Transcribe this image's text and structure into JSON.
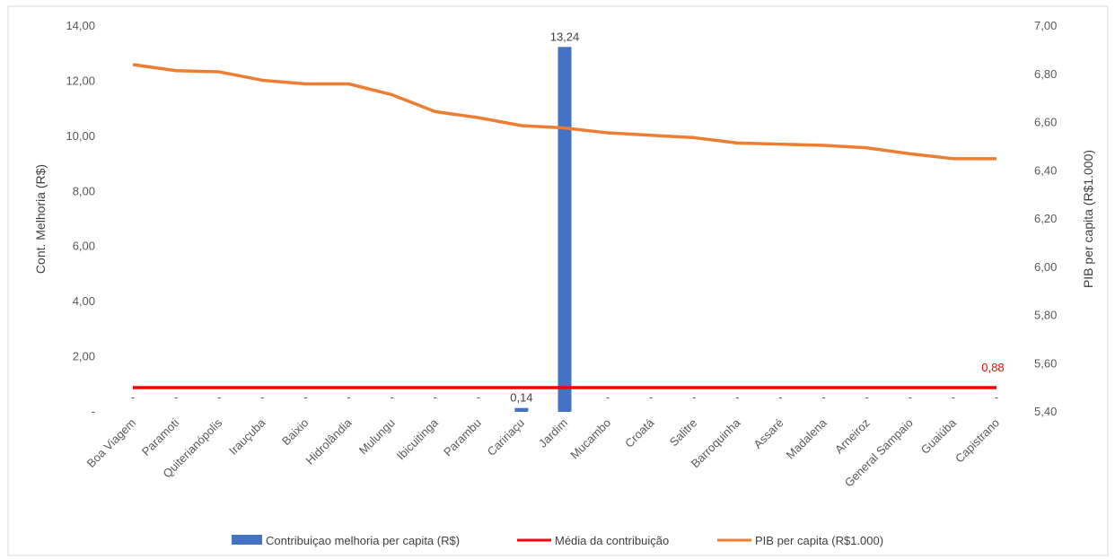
{
  "chart_data": {
    "type": "bar",
    "categories": [
      "Boa Viagem",
      "Paramoti",
      "Quiterianópolis",
      "Irauçuba",
      "Baixio",
      "Hidrolândia",
      "Mulungu",
      "Ibicuitinga",
      "Parambu",
      "Caririaçu",
      "Jardim",
      "Mucambo",
      "Croatá",
      "Salitre",
      "Barroquinha",
      "Assaré",
      "Madalena",
      "Arneiroz",
      "General Sampaio",
      "Guaiúba",
      "Capistrano"
    ],
    "series": [
      {
        "name": "Contribuiçao melhoria per capita (R$)",
        "type": "bar",
        "axis": "left",
        "color": "#4472c4",
        "values": [
          0,
          0,
          0,
          0,
          0,
          0,
          0,
          0,
          0,
          0.14,
          13.24,
          0,
          0,
          0,
          0,
          0,
          0,
          0,
          0,
          0,
          0
        ],
        "zero_label": "-",
        "value_labels": [
          "-",
          "-",
          "-",
          "-",
          "-",
          "-",
          "-",
          "-",
          "-",
          "0,14",
          "13,24",
          "-",
          "-",
          "-",
          "-",
          "-",
          "-",
          "-",
          "-",
          "-",
          "-"
        ]
      },
      {
        "name": "Média da contribuição",
        "type": "line",
        "axis": "left",
        "color": "#ff0000",
        "values": [
          0.88,
          0.88,
          0.88,
          0.88,
          0.88,
          0.88,
          0.88,
          0.88,
          0.88,
          0.88,
          0.88,
          0.88,
          0.88,
          0.88,
          0.88,
          0.88,
          0.88,
          0.88,
          0.88,
          0.88,
          0.88
        ],
        "end_label": "0,88",
        "end_label_color": "#ff0000"
      },
      {
        "name": "PIB per capita (R$1.000)",
        "type": "line",
        "axis": "right",
        "color": "#ed7d31",
        "values": [
          6.84,
          6.815,
          6.81,
          6.775,
          6.76,
          6.76,
          6.715,
          6.645,
          6.62,
          6.587,
          6.577,
          6.557,
          6.547,
          6.537,
          6.515,
          6.51,
          6.505,
          6.495,
          6.47,
          6.45,
          6.45
        ]
      }
    ],
    "yleft": {
      "label": "Cont. Melhoria (R$)",
      "ylim": [
        0,
        14
      ],
      "ticks": [
        0,
        2,
        4,
        6,
        8,
        10,
        12,
        14
      ],
      "tick_labels": [
        "-",
        "2,00",
        "4,00",
        "6,00",
        "8,00",
        "10,00",
        "12,00",
        "14,00"
      ]
    },
    "yright": {
      "label": "PIB per capita (R$1.000)",
      "ylim": [
        5.4,
        7.0
      ],
      "ticks": [
        5.4,
        5.6,
        5.8,
        6.0,
        6.2,
        6.4,
        6.6,
        6.8,
        7.0
      ],
      "tick_labels": [
        "5,40",
        "5,60",
        "5,80",
        "6,00",
        "6,20",
        "6,40",
        "6,60",
        "6,80",
        "7,00"
      ]
    },
    "grid": false,
    "legend": "bottom"
  }
}
